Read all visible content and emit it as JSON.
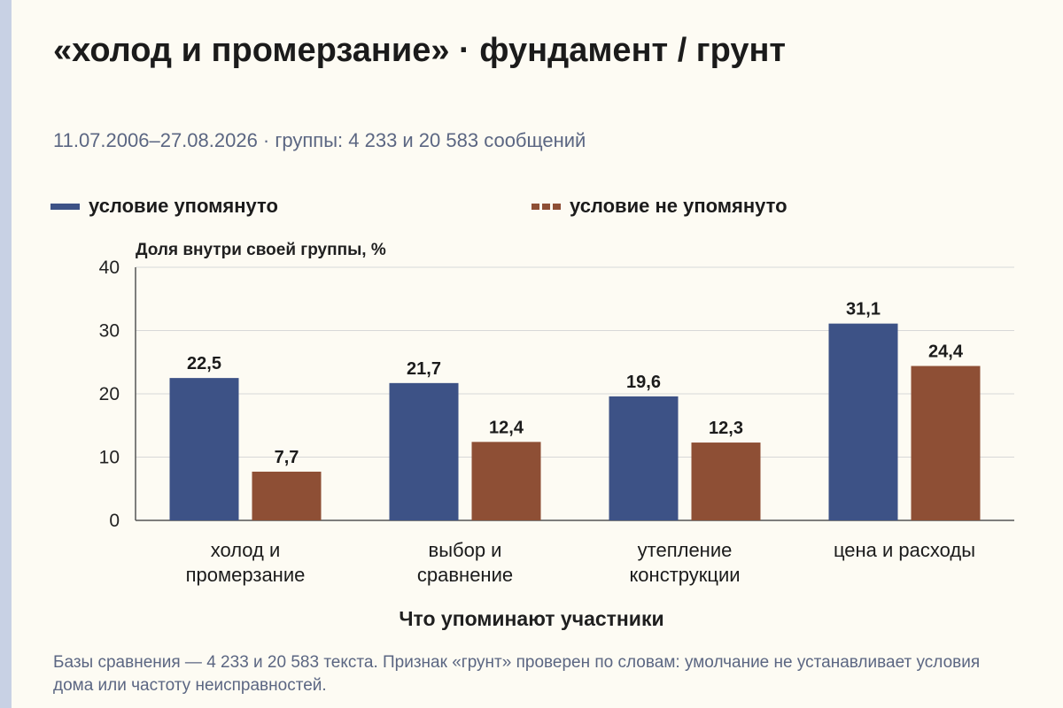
{
  "title": "«холод и промерзание» · фундамент / грунт",
  "subtitle": "11.07.2006–27.08.2026 · группы: 4 233 и 20 583 сообщений",
  "footnote": "Базы сравнения — 4 233 и 20 583 текста. Признак «грунт» проверен по словам: умолчание не устанавливает условия дома или частоту неисправностей.",
  "colors": {
    "series_a": "#3d5286",
    "series_b": "#8e4f35",
    "grid": "#d8d8d8",
    "axis": "#555555",
    "sidebar": "#c8d1e4"
  },
  "chart_data": {
    "type": "bar",
    "ylabel": "Доля внутри своей группы, %",
    "xlabel": "Что упоминают участники",
    "ylim": [
      0,
      40
    ],
    "yticks": [
      "0",
      "10",
      "20",
      "30",
      "40"
    ],
    "grid": true,
    "legend": "top",
    "categories": [
      "холод и промерзание",
      "выбор и сравнение",
      "утепление конструкции",
      "цена и расходы"
    ],
    "series": [
      {
        "name": "условие упомянуто",
        "values": [
          22.5,
          21.7,
          19.6,
          31.1
        ],
        "labels": [
          "22,5",
          "21,7",
          "19,6",
          "31,1"
        ]
      },
      {
        "name": "условие не упомянуто",
        "values": [
          7.7,
          12.4,
          12.3,
          24.4
        ],
        "labels": [
          "7,7",
          "12,4",
          "12,3",
          "24,4"
        ]
      }
    ]
  }
}
